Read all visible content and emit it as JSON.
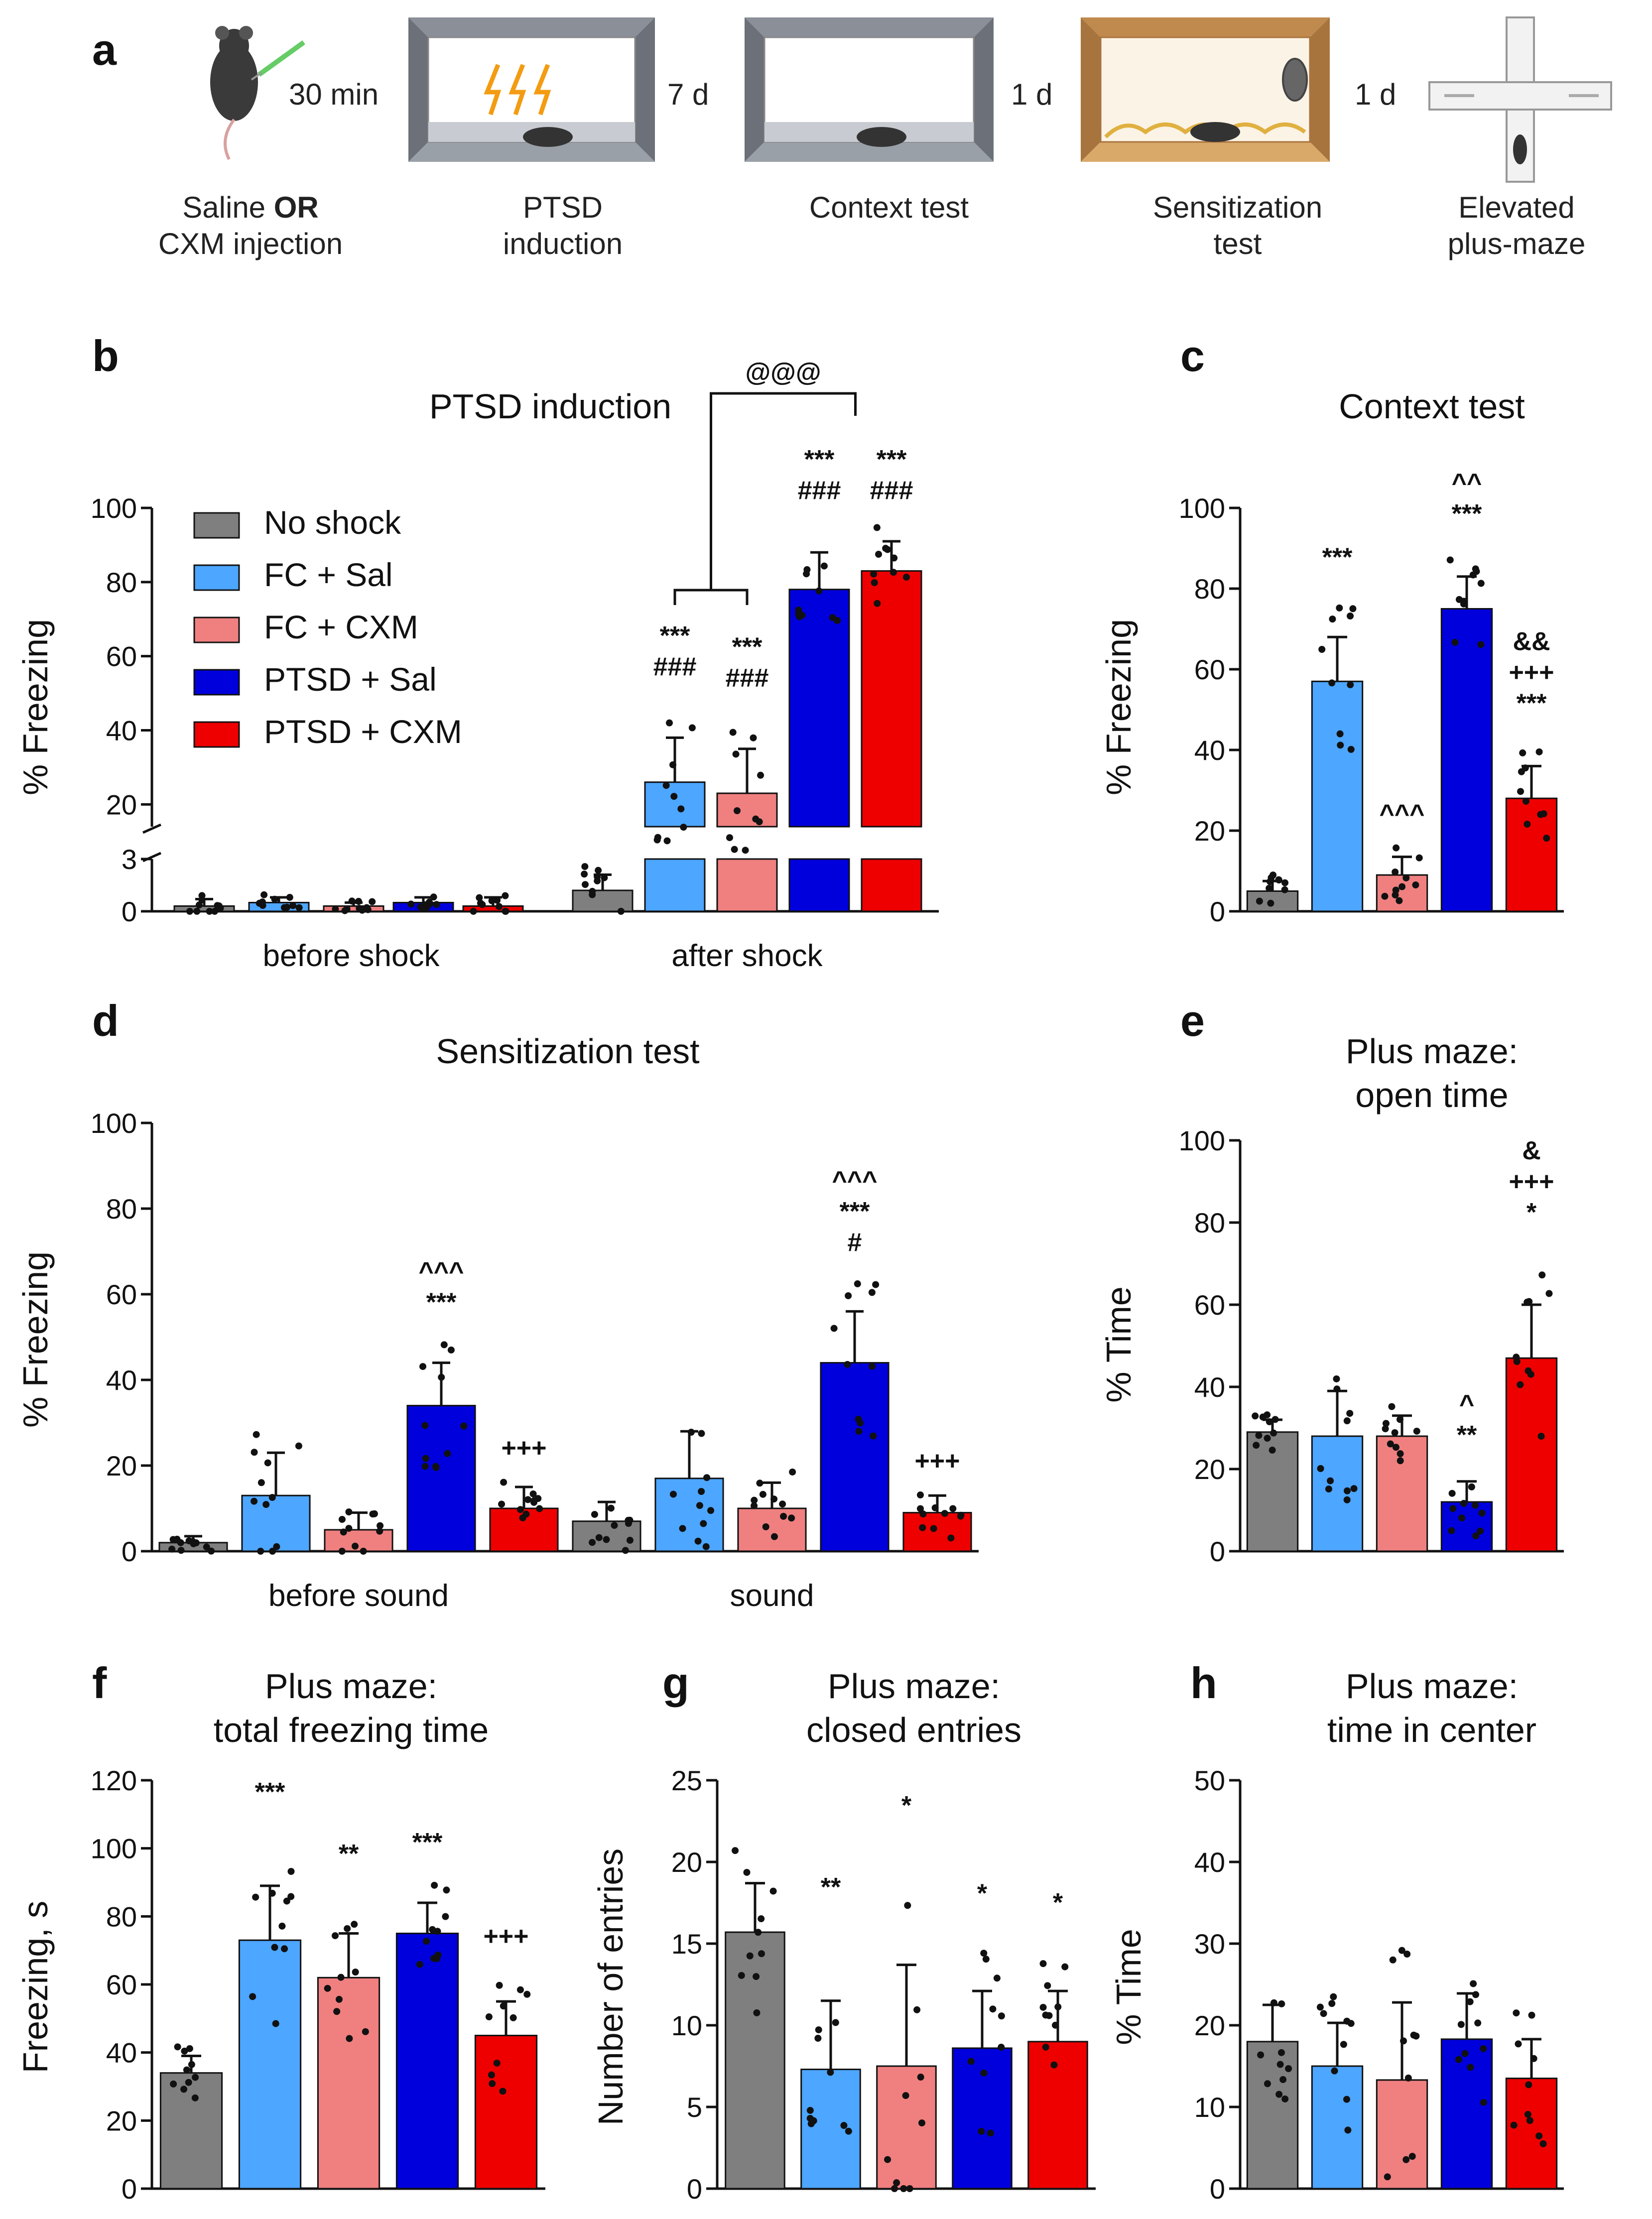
{
  "colors": {
    "no_shock": "#7f7f7f",
    "fc_sal": "#4da6ff",
    "fc_cxm": "#f08080",
    "ptsd_sal": "#0000dd",
    "ptsd_cxm": "#ee0000"
  },
  "schedule": {
    "letter": "a",
    "steps": [
      {
        "label_top": "Saline",
        "label_bold": "OR",
        "label_bottom": "CXM injection",
        "icon": "mouse-injection-icon"
      },
      {
        "label_top": "PTSD",
        "label_bottom": "induction",
        "icon": "shock-chamber-icon"
      },
      {
        "label_top": "Context test",
        "label_bottom": "",
        "icon": "context-chamber-icon"
      },
      {
        "label_top": "Sensitization",
        "label_bottom": "test",
        "icon": "sensitization-box-icon"
      },
      {
        "label_top": "Elevated",
        "label_bottom": "plus-maze",
        "icon": "plus-maze-icon"
      }
    ],
    "intervals": [
      "30 min",
      "7 d",
      "1 d",
      "1 d"
    ]
  },
  "legend": [
    "No shock",
    "FC + Sal",
    "FC + CXM",
    "PTSD + Sal",
    "PTSD + CXM"
  ],
  "chart_data": [
    {
      "id": "b",
      "letter": "b",
      "type": "bar",
      "title": "PTSD induction",
      "ylabel": "% Freezing",
      "ylim": [
        0,
        100
      ],
      "y_broken": true,
      "lower_ticks": [
        "0",
        "3"
      ],
      "upper_ticks": [
        "20",
        "40",
        "60",
        "80",
        "100"
      ],
      "categories": [
        "before shock",
        "after shock"
      ],
      "series": [
        {
          "name": "No shock",
          "values": [
            0.3,
            1.2
          ],
          "err": [
            0.4,
            0.9
          ]
        },
        {
          "name": "FC + Sal",
          "values": [
            0.5,
            26
          ],
          "err": [
            0.3,
            12
          ]
        },
        {
          "name": "FC + CXM",
          "values": [
            0.3,
            23
          ],
          "err": [
            0.2,
            12
          ]
        },
        {
          "name": "PTSD + Sal",
          "values": [
            0.5,
            78
          ],
          "err": [
            0.3,
            10
          ]
        },
        {
          "name": "PTSD + CXM",
          "values": [
            0.3,
            83
          ],
          "err": [
            0.5,
            8
          ]
        }
      ],
      "annotations": [
        {
          "series": 1,
          "cat": 1,
          "lines": [
            "***",
            "###"
          ]
        },
        {
          "series": 2,
          "cat": 1,
          "lines": [
            "***",
            "###"
          ]
        },
        {
          "series": 3,
          "cat": 1,
          "lines": [
            "***",
            "###"
          ]
        },
        {
          "series": 4,
          "cat": 1,
          "lines": [
            "***",
            "###"
          ]
        }
      ],
      "bracket": "@@@"
    },
    {
      "id": "c",
      "letter": "c",
      "type": "bar",
      "title": "Context test",
      "ylabel": "% Freezing",
      "ylim": [
        0,
        100
      ],
      "ticks": [
        "0",
        "20",
        "40",
        "60",
        "80",
        "100"
      ],
      "categories": [
        "No shock",
        "FC + Sal",
        "FC + CXM",
        "PTSD + Sal",
        "PTSD + CXM"
      ],
      "values": [
        5,
        57,
        9,
        75,
        28
      ],
      "err": [
        2.5,
        11,
        4.5,
        8,
        8
      ],
      "annotations": [
        [],
        [
          "***"
        ],
        [
          "^^^"
        ],
        [
          "^^",
          "***"
        ],
        [
          "&&",
          "+++",
          "***"
        ]
      ]
    },
    {
      "id": "d",
      "letter": "d",
      "type": "bar",
      "title": "Sensitization test",
      "ylabel": "% Freezing",
      "ylim": [
        0,
        100
      ],
      "ticks": [
        "0",
        "20",
        "40",
        "60",
        "80",
        "100"
      ],
      "categories": [
        "before sound",
        "sound"
      ],
      "series": [
        {
          "name": "No shock",
          "values": [
            2,
            7
          ],
          "err": [
            1.5,
            4.5
          ]
        },
        {
          "name": "FC + Sal",
          "values": [
            13,
            17
          ],
          "err": [
            10,
            11
          ]
        },
        {
          "name": "FC + CXM",
          "values": [
            5,
            10
          ],
          "err": [
            4,
            6
          ]
        },
        {
          "name": "PTSD + Sal",
          "values": [
            34,
            44
          ],
          "err": [
            10,
            12
          ]
        },
        {
          "name": "PTSD + CXM",
          "values": [
            10,
            9
          ],
          "err": [
            5,
            4
          ]
        }
      ],
      "annotations": [
        {
          "series": 3,
          "cat": 0,
          "lines": [
            "^^^",
            "***"
          ]
        },
        {
          "series": 4,
          "cat": 0,
          "lines": [
            "+++"
          ]
        },
        {
          "series": 3,
          "cat": 1,
          "lines": [
            "^^^",
            "***",
            "#"
          ]
        },
        {
          "series": 4,
          "cat": 1,
          "lines": [
            "+++"
          ]
        }
      ]
    },
    {
      "id": "e",
      "letter": "e",
      "type": "bar",
      "title": "Plus maze:",
      "title2": "open time",
      "ylabel": "% Time",
      "ylim": [
        0,
        100
      ],
      "ticks": [
        "0",
        "20",
        "40",
        "60",
        "80",
        "100"
      ],
      "categories": [
        "No shock",
        "FC + Sal",
        "FC + CXM",
        "PTSD + Sal",
        "PTSD + CXM"
      ],
      "values": [
        29,
        28,
        28,
        12,
        47
      ],
      "err": [
        3,
        11,
        5,
        5,
        13
      ],
      "annotations": [
        [],
        [],
        [],
        [
          "^",
          "**"
        ],
        [
          "&",
          "+++",
          "*"
        ]
      ]
    },
    {
      "id": "f",
      "letter": "f",
      "type": "bar",
      "title": "Plus maze:",
      "title2": "total freezing time",
      "ylabel": "Freezing, s",
      "ylim": [
        0,
        120
      ],
      "ticks": [
        "0",
        "20",
        "40",
        "60",
        "80",
        "100",
        "120"
      ],
      "categories": [
        "No shock",
        "FC + Sal",
        "FC + CXM",
        "PTSD + Sal",
        "PTSD + CXM"
      ],
      "values": [
        34,
        73,
        62,
        75,
        45
      ],
      "err": [
        5,
        16,
        13,
        9,
        10
      ],
      "annotations": [
        [],
        [
          "***"
        ],
        [
          "**"
        ],
        [
          "***"
        ],
        [
          "+++"
        ]
      ]
    },
    {
      "id": "g",
      "letter": "g",
      "type": "bar",
      "title": "Plus maze:",
      "title2": "closed entries",
      "ylabel": "Number of entries",
      "ylim": [
        0,
        25
      ],
      "ticks": [
        "0",
        "5",
        "10",
        "15",
        "20",
        "25"
      ],
      "categories": [
        "No shock",
        "FC + Sal",
        "FC + CXM",
        "PTSD + Sal",
        "PTSD + CXM"
      ],
      "values": [
        15.7,
        7.3,
        7.5,
        8.6,
        9
      ],
      "err": [
        3,
        4.2,
        6.2,
        3.5,
        3.1
      ],
      "annotations": [
        [],
        [
          "**"
        ],
        [
          "*"
        ],
        [
          "*"
        ],
        [
          "*"
        ]
      ]
    },
    {
      "id": "h",
      "letter": "h",
      "type": "bar",
      "title": "Plus maze:",
      "title2": "time in center",
      "ylabel": "% Time",
      "ylim": [
        0,
        50
      ],
      "ticks": [
        "0",
        "10",
        "20",
        "30",
        "40",
        "50"
      ],
      "categories": [
        "No shock",
        "FC + Sal",
        "FC + CXM",
        "PTSD + Sal",
        "PTSD + CXM"
      ],
      "values": [
        18,
        15,
        13.3,
        18.3,
        13.5
      ],
      "err": [
        4.5,
        5.3,
        9.5,
        5.6,
        4.8
      ],
      "annotations": [
        [],
        [],
        [],
        [],
        []
      ]
    }
  ]
}
